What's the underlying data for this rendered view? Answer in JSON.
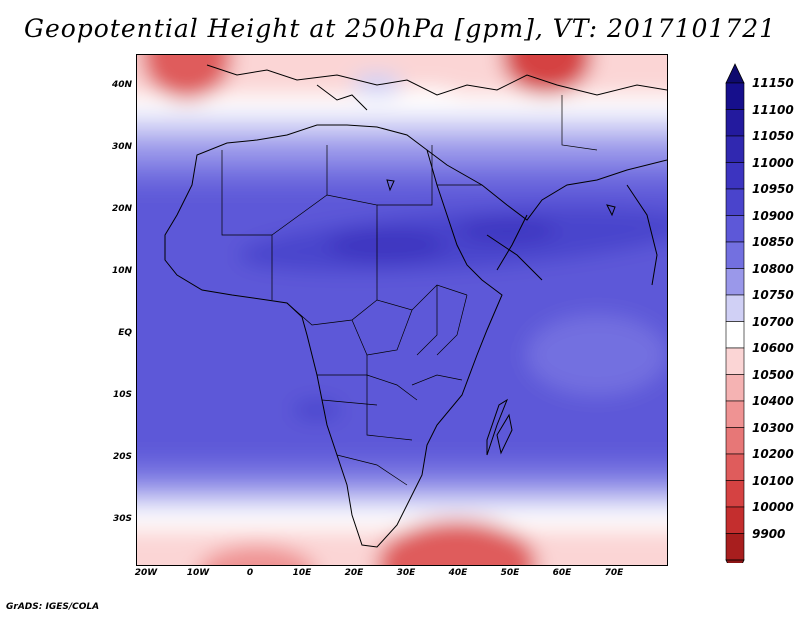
{
  "title": "Geopotential Height at 250hPa [gpm], VT: 2017101721",
  "credit": "GrADS: IGES/COLA",
  "chart_data": {
    "type": "heatmap",
    "variable": "Geopotential Height",
    "level_hpa": 250,
    "units": "gpm",
    "valid_time": "2017101721",
    "region": "Africa",
    "xlim": [
      -22,
      80
    ],
    "ylim": [
      -37,
      46
    ],
    "lat_ticks": [
      {
        "value": 40,
        "label": "40N"
      },
      {
        "value": 30,
        "label": "30N"
      },
      {
        "value": 20,
        "label": "20N"
      },
      {
        "value": 10,
        "label": "10N"
      },
      {
        "value": 0,
        "label": "EQ"
      },
      {
        "value": -10,
        "label": "10S"
      },
      {
        "value": -20,
        "label": "20S"
      },
      {
        "value": -30,
        "label": "30S"
      }
    ],
    "lon_ticks": [
      {
        "value": -20,
        "label": "20W"
      },
      {
        "value": -10,
        "label": "10W"
      },
      {
        "value": 0,
        "label": "0"
      },
      {
        "value": 10,
        "label": "10E"
      },
      {
        "value": 20,
        "label": "20E"
      },
      {
        "value": 30,
        "label": "30E"
      },
      {
        "value": 40,
        "label": "40E"
      },
      {
        "value": 50,
        "label": "50E"
      },
      {
        "value": 60,
        "label": "60E"
      },
      {
        "value": 70,
        "label": "70E"
      }
    ],
    "colorbar": [
      {
        "label": "11150",
        "color": "#160f8c"
      },
      {
        "label": "11100",
        "color": "#231a9e"
      },
      {
        "label": "11050",
        "color": "#3028b0"
      },
      {
        "label": "11000",
        "color": "#3c34c0"
      },
      {
        "label": "10950",
        "color": "#4a44cc"
      },
      {
        "label": "10900",
        "color": "#5d58d8"
      },
      {
        "label": "10850",
        "color": "#7370e0"
      },
      {
        "label": "10800",
        "color": "#9a98ea"
      },
      {
        "label": "10750",
        "color": "#d0d0f5"
      },
      {
        "label": "10700",
        "color": "#ffffff"
      },
      {
        "label": "10600",
        "color": "#fbd5d5"
      },
      {
        "label": "10500",
        "color": "#f5b3b3"
      },
      {
        "label": "10400",
        "color": "#ef9393"
      },
      {
        "label": "10300",
        "color": "#e77777"
      },
      {
        "label": "10200",
        "color": "#df5c5c"
      },
      {
        "label": "10100",
        "color": "#d54242"
      },
      {
        "label": "10000",
        "color": "#c42e2e"
      },
      {
        "label": "9900",
        "color": "#a81e1e"
      }
    ],
    "colorbar_top_arrow_color": "#0e0a6e",
    "colorbar_bottom_arrow_color": "#8c1414",
    "features": [
      {
        "name": "trough-high-north-africa-mideast",
        "level_label": "11000"
      },
      {
        "name": "low-ridge-south",
        "level_label": "10600"
      }
    ]
  }
}
